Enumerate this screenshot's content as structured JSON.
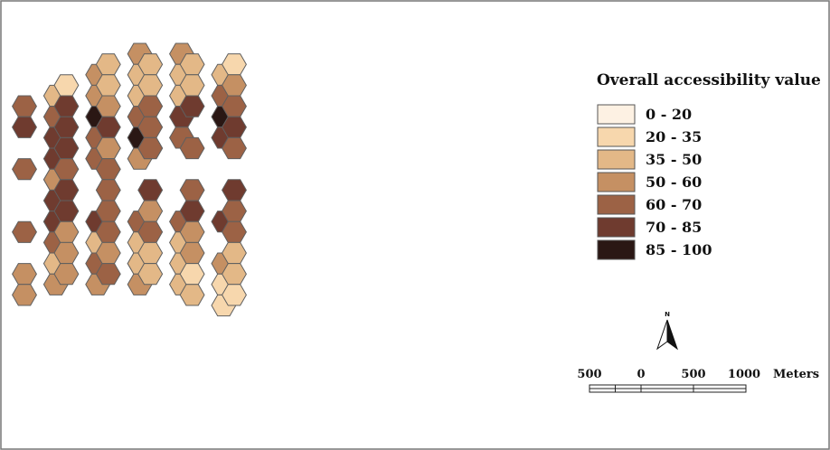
{
  "map": {
    "palette": [
      "#fdf1e3",
      "#f7d7ad",
      "#e3b887",
      "#c59063",
      "#9c6245",
      "#6f3b2f",
      "#2a1714"
    ]
  },
  "legend": {
    "title": "Overall accessibility value",
    "classes": [
      {
        "label": "0 - 20",
        "color": "#fdf1e3"
      },
      {
        "label": "20 - 35",
        "color": "#f7d7ad"
      },
      {
        "label": "35 - 50",
        "color": "#e3b887"
      },
      {
        "label": "50 - 60",
        "color": "#c59063"
      },
      {
        "label": "60 - 70",
        "color": "#9c6245"
      },
      {
        "label": "70 - 85",
        "color": "#6f3b2f"
      },
      {
        "label": "85 - 100",
        "color": "#2a1714"
      }
    ]
  },
  "north_arrow": {
    "label": "N"
  },
  "scale_bar": {
    "labels": [
      "500",
      "0",
      "500",
      "1000"
    ],
    "unit": "Meters"
  }
}
